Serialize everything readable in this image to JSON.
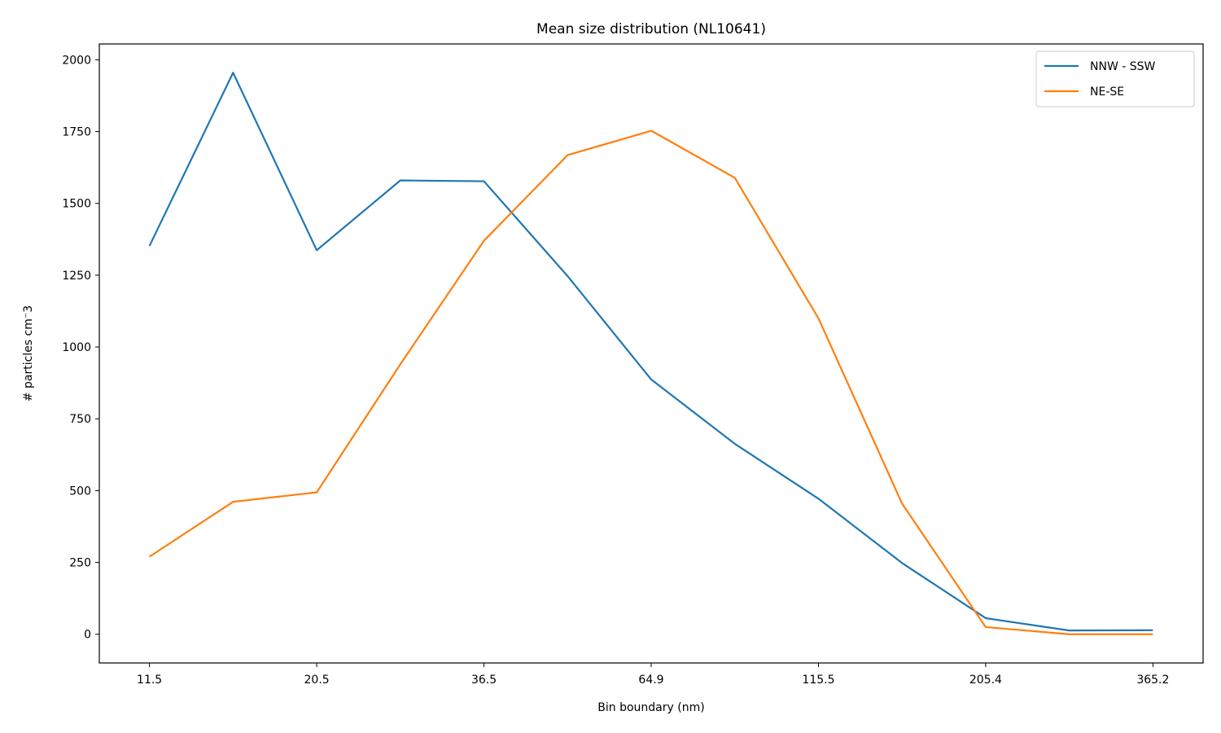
{
  "chart_data": {
    "type": "line",
    "title": "Mean size distribution (NL10641)",
    "xlabel": "Bin boundary (nm)",
    "ylabel": "# particles cm⁻3",
    "x_tick_labels": [
      "11.5",
      "20.5",
      "36.5",
      "64.9",
      "115.5",
      "205.4",
      "365.2"
    ],
    "x_tick_positions": [
      0,
      2,
      4,
      6,
      8,
      10,
      12
    ],
    "x": [
      0,
      1,
      2,
      3,
      4,
      5,
      6,
      7,
      8,
      9,
      10,
      11,
      12
    ],
    "xlim": [
      -0.6,
      12.6
    ],
    "ylim": [
      -100,
      2055
    ],
    "y_ticks": [
      0,
      250,
      500,
      750,
      1000,
      1250,
      1500,
      1750,
      2000
    ],
    "grid": false,
    "legend_position": "top-right",
    "series": [
      {
        "name": "NNW - SSW",
        "color": "#1f77b4",
        "values": [
          1352,
          1955,
          1337,
          1580,
          1577,
          1247,
          887,
          663,
          472,
          248,
          56,
          13,
          14
        ]
      },
      {
        "name": "NE-SE",
        "color": "#ff7f0e",
        "values": [
          270,
          461,
          494,
          940,
          1370,
          1668,
          1753,
          1589,
          1100,
          455,
          25,
          0,
          0
        ]
      }
    ]
  }
}
